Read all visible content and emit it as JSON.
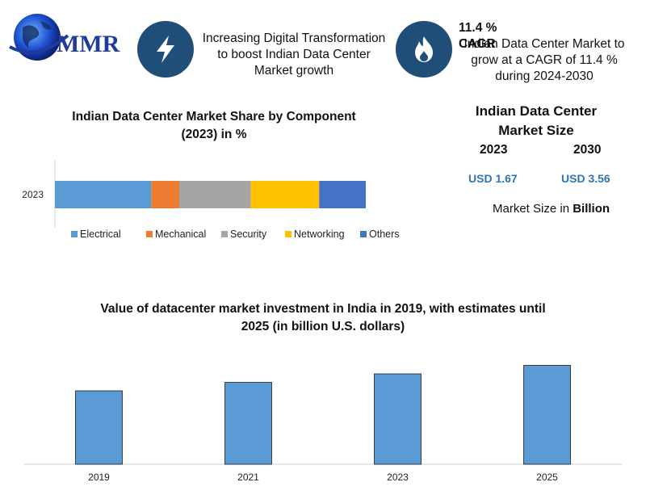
{
  "logo": {
    "text": "MMR"
  },
  "header": {
    "item1": {
      "icon": "lightning-bolt-icon",
      "text_lines": [
        "Increasing Digital Transformation",
        "to boost Indian Data Center",
        "Market growth"
      ]
    },
    "item2": {
      "icon": "flame-icon",
      "headline": "11.4 % CAGR",
      "text_lines": [
        "Indian Data Center Market to",
        "grow at a CAGR of 11.4 %",
        "during 2024-2030"
      ]
    }
  },
  "market_size": {
    "title_lines": [
      "Indian Data Center",
      "Market Size"
    ],
    "years": [
      "2023",
      "2030"
    ],
    "values": [
      "USD 1.67",
      "USD 3.56"
    ],
    "note_prefix": "Market Size in ",
    "note_bold": "Billion"
  },
  "colors": {
    "Electrical": "#5b9bd5",
    "Mechanical": "#ed7d31",
    "Security": "#a5a5a5",
    "Networking": "#ffc000",
    "Others": "#4472c4",
    "bar": "#5b9bd5",
    "icon_bg": "#1f4e79"
  },
  "chart_data": [
    {
      "type": "bar",
      "orientation": "horizontal-stacked",
      "title": "Indian Data Center Market Share by Component (2023) in %",
      "title_lines": [
        "Indian Data Center Market Share by Component",
        "(2023) in %"
      ],
      "categories": [
        "2023"
      ],
      "series": [
        {
          "name": "Electrical",
          "values": [
            31
          ]
        },
        {
          "name": "Mechanical",
          "values": [
            9
          ]
        },
        {
          "name": "Security",
          "values": [
            23
          ]
        },
        {
          "name": "Networking",
          "values": [
            22
          ]
        },
        {
          "name": "Others",
          "values": [
            15
          ]
        }
      ],
      "xlim": [
        0,
        100
      ],
      "legend": "bottom",
      "grid": false
    },
    {
      "type": "bar",
      "title": "Value of datacenter market investment in India in 2019, with estimates until 2025 (in billion U.S. dollars)",
      "title_lines": [
        "Value of datacenter market investment in India in 2019, with estimates until",
        "2025 (in billion U.S. dollars)"
      ],
      "categories": [
        "2019",
        "2021",
        "2023",
        "2025"
      ],
      "values": [
        1.3,
        1.45,
        1.6,
        1.75
      ],
      "ylim": [
        0,
        2
      ],
      "grid": false,
      "legend": "none"
    }
  ]
}
